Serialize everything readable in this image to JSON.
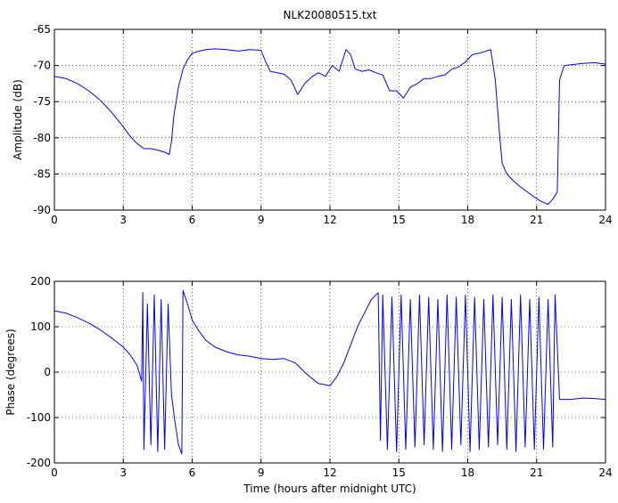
{
  "chart_data": [
    {
      "type": "line",
      "title": "NLK20080515.txt",
      "xlabel": "",
      "ylabel": "Amplitude (dB)",
      "xlim": [
        0,
        24
      ],
      "ylim": [
        -90,
        -65
      ],
      "xticks": [
        0,
        3,
        6,
        9,
        12,
        15,
        18,
        21,
        24
      ],
      "yticks": [
        -90,
        -85,
        -80,
        -75,
        -70,
        -65
      ],
      "grid": true,
      "color": "#0000ff",
      "series": [
        {
          "x": [
            0,
            0.5,
            1,
            1.5,
            2,
            2.5,
            3,
            3.3,
            3.6,
            3.9,
            4.2,
            4.5,
            4.8,
            5.0,
            5.1,
            5.2,
            5.4,
            5.6,
            5.8,
            6.0,
            6.3,
            6.6,
            7.0,
            7.5,
            8.0,
            8.5,
            9.0,
            9.2,
            9.4,
            9.7,
            10.0,
            10.3,
            10.6,
            10.9,
            11.2,
            11.5,
            11.8,
            12.1,
            12.4,
            12.7,
            12.9,
            13.1,
            13.4,
            13.7,
            14.0,
            14.3,
            14.6,
            14.9,
            15.2,
            15.5,
            15.8,
            16.1,
            16.4,
            16.7,
            17.0,
            17.3,
            17.6,
            17.9,
            18.2,
            18.5,
            18.8,
            19.0,
            19.2,
            19.4,
            19.5,
            19.7,
            20.0,
            20.3,
            20.6,
            20.9,
            21.2,
            21.5,
            21.7,
            21.9,
            22.0,
            22.2,
            22.5,
            23.0,
            23.5,
            24.0
          ],
          "y": [
            -71.5,
            -71.8,
            -72.5,
            -73.5,
            -74.8,
            -76.5,
            -78.5,
            -79.8,
            -80.8,
            -81.5,
            -81.5,
            -81.7,
            -82.0,
            -82.3,
            -80.5,
            -77,
            -73,
            -70.5,
            -69.2,
            -68.3,
            -68.0,
            -67.8,
            -67.7,
            -67.8,
            -68.0,
            -67.8,
            -67.9,
            -69.5,
            -70.8,
            -71.0,
            -71.2,
            -72.0,
            -74.0,
            -72.5,
            -71.6,
            -71.0,
            -71.5,
            -70.0,
            -70.8,
            -67.8,
            -68.5,
            -70.5,
            -70.8,
            -70.6,
            -71.0,
            -71.3,
            -73.5,
            -73.5,
            -74.5,
            -73.0,
            -72.5,
            -71.8,
            -71.8,
            -71.5,
            -71.3,
            -70.5,
            -70.2,
            -69.5,
            -68.5,
            -68.3,
            -68.0,
            -67.8,
            -72.0,
            -80.0,
            -83.5,
            -85.0,
            -86.0,
            -86.8,
            -87.5,
            -88.2,
            -88.8,
            -89.2,
            -88.5,
            -87.5,
            -72.0,
            -70.0,
            -69.9,
            -69.7,
            -69.6,
            -69.8
          ]
        }
      ]
    },
    {
      "type": "line",
      "title": "",
      "xlabel": "Time (hours after midnight UTC)",
      "ylabel": "Phase (degrees)",
      "xlim": [
        0,
        24
      ],
      "ylim": [
        -200,
        200
      ],
      "xticks": [
        0,
        3,
        6,
        9,
        12,
        15,
        18,
        21,
        24
      ],
      "yticks": [
        -200,
        -100,
        0,
        100,
        200
      ],
      "grid": true,
      "color": "#0000ff",
      "series": [
        {
          "x": [
            0,
            0.5,
            1,
            1.5,
            2,
            2.5,
            3,
            3.3,
            3.6,
            3.8,
            3.85,
            3.9,
            4.05,
            4.2,
            4.35,
            4.5,
            4.65,
            4.8,
            4.95,
            5.1,
            5.25,
            5.4,
            5.55,
            5.6,
            5.8,
            6.0,
            6.3,
            6.6,
            7.0,
            7.5,
            8.0,
            8.5,
            9.0,
            9.5,
            10.0,
            10.5,
            11.0,
            11.5,
            12.0,
            12.3,
            12.6,
            12.9,
            13.2,
            13.5,
            13.8,
            14.1,
            14.2,
            14.3,
            14.5,
            14.7,
            14.9,
            15.1,
            15.3,
            15.5,
            15.7,
            15.9,
            16.1,
            16.3,
            16.5,
            16.7,
            16.9,
            17.1,
            17.3,
            17.5,
            17.7,
            17.9,
            18.1,
            18.3,
            18.5,
            18.7,
            18.9,
            19.1,
            19.3,
            19.5,
            19.7,
            19.9,
            20.1,
            20.3,
            20.5,
            20.7,
            20.9,
            21.1,
            21.3,
            21.5,
            21.7,
            21.8,
            22.0,
            22.5,
            23.0,
            23.5,
            24.0
          ],
          "y": [
            135,
            130,
            120,
            108,
            93,
            75,
            55,
            38,
            15,
            -20,
            175,
            -170,
            150,
            -160,
            170,
            -175,
            160,
            -170,
            150,
            -50,
            -110,
            -160,
            -180,
            180,
            150,
            115,
            90,
            70,
            55,
            45,
            38,
            35,
            30,
            28,
            30,
            20,
            -5,
            -25,
            -30,
            -10,
            20,
            60,
            100,
            130,
            160,
            175,
            -150,
            170,
            -170,
            165,
            -175,
            170,
            -170,
            160,
            -165,
            170,
            -160,
            165,
            -170,
            160,
            -175,
            170,
            -170,
            165,
            -160,
            170,
            -175,
            165,
            -170,
            160,
            -165,
            170,
            -160,
            165,
            -170,
            160,
            -175,
            170,
            -165,
            160,
            -170,
            165,
            -170,
            160,
            -165,
            170,
            -60,
            -60,
            -57,
            -58,
            -60
          ]
        }
      ]
    }
  ]
}
